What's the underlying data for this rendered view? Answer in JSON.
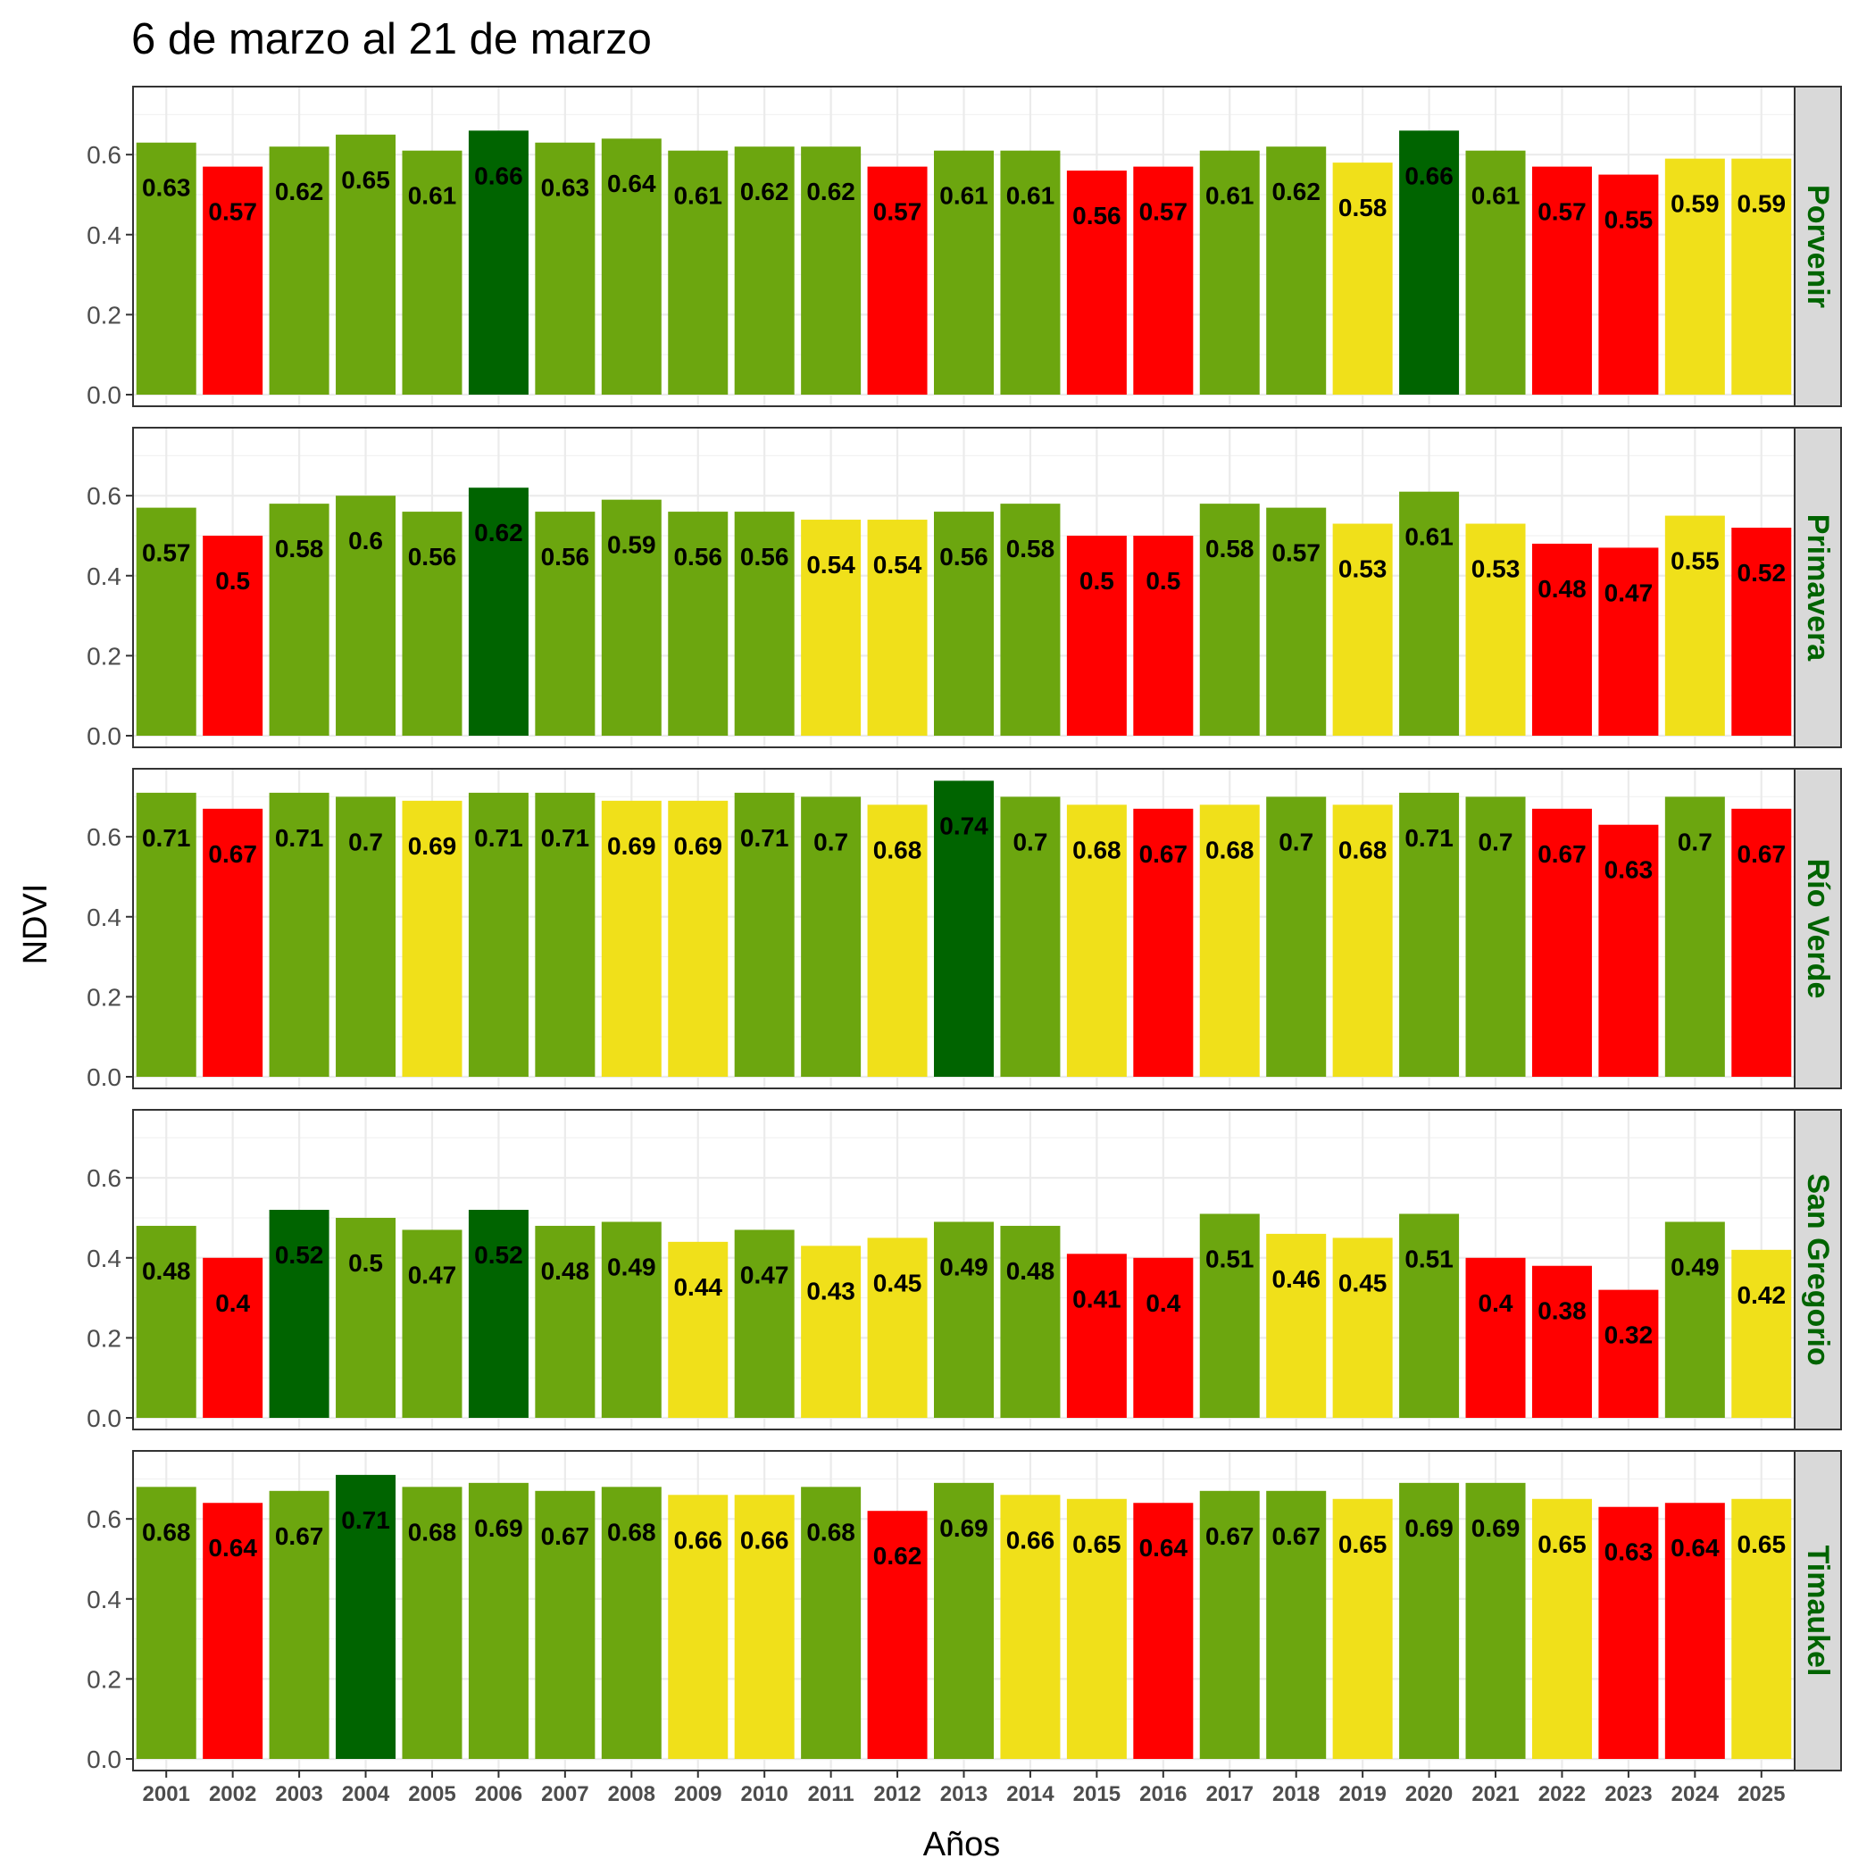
{
  "chart_data": {
    "type": "bar",
    "title": "6 de marzo al 21 de marzo",
    "xlabel": "Años",
    "ylabel": "NDVI",
    "ylim": [
      0,
      0.77
    ],
    "yticks": [
      "0.0",
      "0.2",
      "0.4",
      "0.6"
    ],
    "grid": true,
    "legend": "none",
    "strip_color": "#006400",
    "colors": {
      "dark_green": "#006400",
      "green": "#6ca60f",
      "yellow": "#f0e01a",
      "red": "#ff0000"
    },
    "categories": [
      "2001",
      "2002",
      "2003",
      "2004",
      "2005",
      "2006",
      "2007",
      "2008",
      "2009",
      "2010",
      "2011",
      "2012",
      "2013",
      "2014",
      "2015",
      "2016",
      "2017",
      "2018",
      "2019",
      "2020",
      "2021",
      "2022",
      "2023",
      "2024",
      "2025"
    ],
    "panels": [
      {
        "name": "Porvenir",
        "values": [
          0.63,
          0.57,
          0.62,
          0.65,
          0.61,
          0.66,
          0.63,
          0.64,
          0.61,
          0.62,
          0.62,
          0.57,
          0.61,
          0.61,
          0.56,
          0.57,
          0.61,
          0.62,
          0.58,
          0.66,
          0.61,
          0.57,
          0.55,
          0.59,
          0.59
        ],
        "labels": [
          "0.63",
          "0.57",
          "0.62",
          "0.65",
          "0.61",
          "0.66",
          "0.63",
          "0.64",
          "0.61",
          "0.62",
          "0.62",
          "0.57",
          "0.61",
          "0.61",
          "0.56",
          "0.57",
          "0.61",
          "0.62",
          "0.58",
          "0.66",
          "0.61",
          "0.57",
          "0.55",
          "0.59",
          "0.59"
        ],
        "colors": [
          "green",
          "red",
          "green",
          "green",
          "green",
          "dark_green",
          "green",
          "green",
          "green",
          "green",
          "green",
          "red",
          "green",
          "green",
          "red",
          "red",
          "green",
          "green",
          "yellow",
          "dark_green",
          "green",
          "red",
          "red",
          "yellow",
          "yellow"
        ]
      },
      {
        "name": "Primavera",
        "values": [
          0.57,
          0.5,
          0.58,
          0.6,
          0.56,
          0.62,
          0.56,
          0.59,
          0.56,
          0.56,
          0.54,
          0.54,
          0.56,
          0.58,
          0.5,
          0.5,
          0.58,
          0.57,
          0.53,
          0.61,
          0.53,
          0.48,
          0.47,
          0.55,
          0.52
        ],
        "labels": [
          "0.57",
          "0.5",
          "0.58",
          "0.6",
          "0.56",
          "0.62",
          "0.56",
          "0.59",
          "0.56",
          "0.56",
          "0.54",
          "0.54",
          "0.56",
          "0.58",
          "0.5",
          "0.5",
          "0.58",
          "0.57",
          "0.53",
          "0.61",
          "0.53",
          "0.48",
          "0.47",
          "0.55",
          "0.52"
        ],
        "colors": [
          "green",
          "red",
          "green",
          "green",
          "green",
          "dark_green",
          "green",
          "green",
          "green",
          "green",
          "yellow",
          "yellow",
          "green",
          "green",
          "red",
          "red",
          "green",
          "green",
          "yellow",
          "green",
          "yellow",
          "red",
          "red",
          "yellow",
          "red"
        ]
      },
      {
        "name": "Río Verde",
        "values": [
          0.71,
          0.67,
          0.71,
          0.7,
          0.69,
          0.71,
          0.71,
          0.69,
          0.69,
          0.71,
          0.7,
          0.68,
          0.74,
          0.7,
          0.68,
          0.67,
          0.68,
          0.7,
          0.68,
          0.71,
          0.7,
          0.67,
          0.63,
          0.7,
          0.67
        ],
        "labels": [
          "0.71",
          "0.67",
          "0.71",
          "0.7",
          "0.69",
          "0.71",
          "0.71",
          "0.69",
          "0.69",
          "0.71",
          "0.7",
          "0.68",
          "0.74",
          "0.7",
          "0.68",
          "0.67",
          "0.68",
          "0.7",
          "0.68",
          "0.71",
          "0.7",
          "0.67",
          "0.63",
          "0.7",
          "0.67"
        ],
        "colors": [
          "green",
          "red",
          "green",
          "green",
          "yellow",
          "green",
          "green",
          "yellow",
          "yellow",
          "green",
          "green",
          "yellow",
          "dark_green",
          "green",
          "yellow",
          "red",
          "yellow",
          "green",
          "yellow",
          "green",
          "green",
          "red",
          "red",
          "green",
          "red"
        ]
      },
      {
        "name": "San Gregorio",
        "values": [
          0.48,
          0.4,
          0.52,
          0.5,
          0.47,
          0.52,
          0.48,
          0.49,
          0.44,
          0.47,
          0.43,
          0.45,
          0.49,
          0.48,
          0.41,
          0.4,
          0.51,
          0.46,
          0.45,
          0.51,
          0.4,
          0.38,
          0.32,
          0.49,
          0.42
        ],
        "labels": [
          "0.48",
          "0.4",
          "0.52",
          "0.5",
          "0.47",
          "0.52",
          "0.48",
          "0.49",
          "0.44",
          "0.47",
          "0.43",
          "0.45",
          "0.49",
          "0.48",
          "0.41",
          "0.4",
          "0.51",
          "0.46",
          "0.45",
          "0.51",
          "0.4",
          "0.38",
          "0.32",
          "0.49",
          "0.42"
        ],
        "colors": [
          "green",
          "red",
          "dark_green",
          "green",
          "green",
          "dark_green",
          "green",
          "green",
          "yellow",
          "green",
          "yellow",
          "yellow",
          "green",
          "green",
          "red",
          "red",
          "green",
          "yellow",
          "yellow",
          "green",
          "red",
          "red",
          "red",
          "green",
          "yellow"
        ]
      },
      {
        "name": "Timaukel",
        "values": [
          0.68,
          0.64,
          0.67,
          0.71,
          0.68,
          0.69,
          0.67,
          0.68,
          0.66,
          0.66,
          0.68,
          0.62,
          0.69,
          0.66,
          0.65,
          0.64,
          0.67,
          0.67,
          0.65,
          0.69,
          0.69,
          0.65,
          0.63,
          0.64,
          0.65
        ],
        "labels": [
          "0.68",
          "0.64",
          "0.67",
          "0.71",
          "0.68",
          "0.69",
          "0.67",
          "0.68",
          "0.66",
          "0.66",
          "0.68",
          "0.62",
          "0.69",
          "0.66",
          "0.65",
          "0.64",
          "0.67",
          "0.67",
          "0.65",
          "0.69",
          "0.69",
          "0.65",
          "0.63",
          "0.64",
          "0.65"
        ],
        "colors": [
          "green",
          "red",
          "green",
          "dark_green",
          "green",
          "green",
          "green",
          "green",
          "yellow",
          "yellow",
          "green",
          "red",
          "green",
          "yellow",
          "yellow",
          "red",
          "green",
          "green",
          "yellow",
          "green",
          "green",
          "yellow",
          "red",
          "red",
          "yellow"
        ]
      }
    ]
  }
}
